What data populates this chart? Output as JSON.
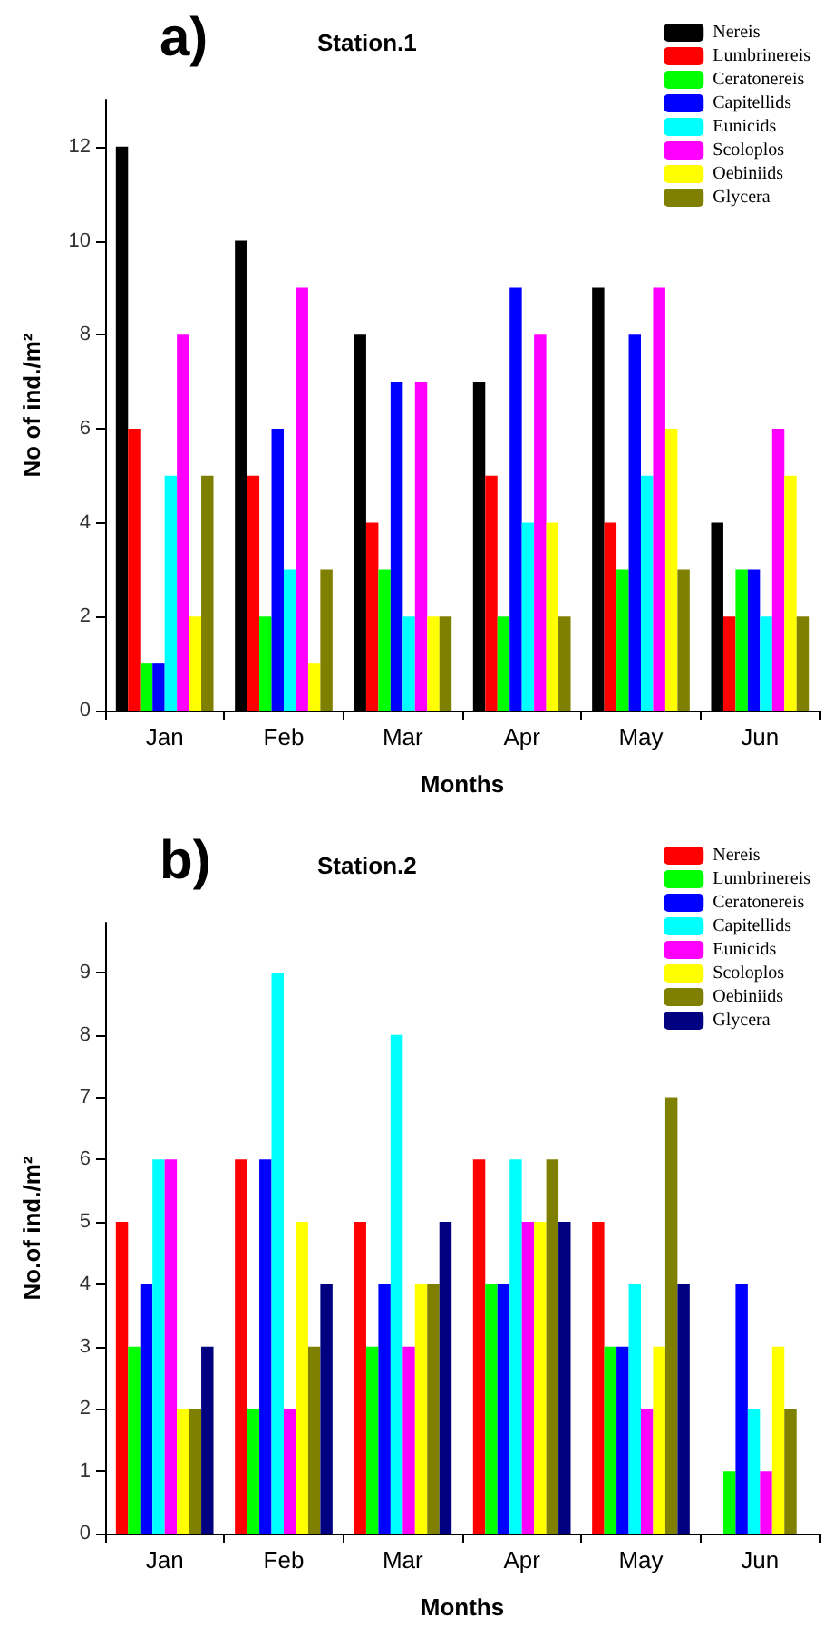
{
  "chart_data": [
    {
      "type": "bar",
      "title": "Station.1",
      "annotations": [
        "a)"
      ],
      "xlabel": "Months",
      "ylabel": "No of ind./m²",
      "categories": [
        "Jan",
        "Feb",
        "Mar",
        "Apr",
        "May",
        "Jun"
      ],
      "ylim": [
        0,
        13
      ],
      "yticks": [
        0,
        2,
        4,
        6,
        8,
        10,
        12
      ],
      "legend": "top right",
      "grid": false,
      "series": [
        {
          "name": "Nereis",
          "color": "#000000",
          "values": [
            12,
            10,
            8,
            7,
            9,
            4
          ]
        },
        {
          "name": "Lumbrinereis",
          "color": "#ff0000",
          "values": [
            6,
            5,
            4,
            5,
            4,
            2
          ]
        },
        {
          "name": "Ceratonereis",
          "color": "#00ff00",
          "values": [
            1,
            2,
            3,
            2,
            3,
            3
          ]
        },
        {
          "name": "Capitellids",
          "color": "#0000ff",
          "values": [
            1,
            6,
            7,
            9,
            8,
            3
          ]
        },
        {
          "name": "Eunicids",
          "color": "#00ffff",
          "values": [
            5,
            3,
            2,
            4,
            5,
            2
          ]
        },
        {
          "name": "Scoloplos",
          "color": "#ff00ff",
          "values": [
            8,
            9,
            7,
            8,
            9,
            6
          ]
        },
        {
          "name": "Oebiniids",
          "color": "#ffff00",
          "values": [
            2,
            1,
            2,
            4,
            6,
            5
          ]
        },
        {
          "name": "Glycera",
          "color": "#808000",
          "values": [
            5,
            3,
            2,
            2,
            3,
            2
          ]
        }
      ]
    },
    {
      "type": "bar",
      "title": "Station.2",
      "annotations": [
        "b)"
      ],
      "xlabel": "Months",
      "ylabel": "No.of ind./m²",
      "categories": [
        "Jan",
        "Feb",
        "Mar",
        "Apr",
        "May",
        "Jun"
      ],
      "ylim": [
        0,
        9.8
      ],
      "yticks": [
        0,
        1,
        2,
        3,
        4,
        5,
        6,
        7,
        8,
        9
      ],
      "legend": "top right",
      "grid": false,
      "series": [
        {
          "name": "Nereis",
          "color": "#ff0000",
          "values": [
            5,
            6,
            5,
            6,
            5,
            0
          ]
        },
        {
          "name": "Lumbrinereis",
          "color": "#00ff00",
          "values": [
            3,
            2,
            3,
            4,
            3,
            1
          ]
        },
        {
          "name": "Ceratonereis",
          "color": "#0000ff",
          "values": [
            4,
            6,
            4,
            4,
            3,
            4
          ]
        },
        {
          "name": "Capitellids",
          "color": "#00ffff",
          "values": [
            6,
            9,
            8,
            6,
            4,
            2
          ]
        },
        {
          "name": "Eunicids",
          "color": "#ff00ff",
          "values": [
            6,
            2,
            3,
            5,
            2,
            1
          ]
        },
        {
          "name": "Scoloplos",
          "color": "#ffff00",
          "values": [
            2,
            5,
            4,
            5,
            3,
            3
          ]
        },
        {
          "name": "Oebiniids",
          "color": "#808000",
          "values": [
            2,
            3,
            4,
            6,
            7,
            2
          ]
        },
        {
          "name": "Glycera",
          "color": "#000080",
          "values": [
            3,
            4,
            5,
            5,
            4,
            0
          ]
        }
      ]
    }
  ]
}
